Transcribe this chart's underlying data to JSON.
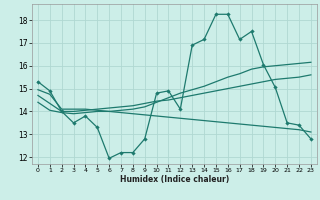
{
  "xlabel": "Humidex (Indice chaleur)",
  "bg_color": "#cceee8",
  "grid_color": "#b0d8d2",
  "line_color": "#1e7a6e",
  "xlim": [
    -0.5,
    23.5
  ],
  "ylim": [
    11.7,
    18.7
  ],
  "yticks": [
    12,
    13,
    14,
    15,
    16,
    17,
    18
  ],
  "xticks": [
    0,
    1,
    2,
    3,
    4,
    5,
    6,
    7,
    8,
    9,
    10,
    11,
    12,
    13,
    14,
    15,
    16,
    17,
    18,
    19,
    20,
    21,
    22,
    23
  ],
  "line1_x": [
    0,
    1,
    2,
    3,
    4,
    5,
    6,
    7,
    8,
    9,
    10,
    11,
    12,
    13,
    14,
    15,
    16,
    17,
    18,
    19,
    20,
    21,
    22,
    23
  ],
  "line1_y": [
    15.3,
    14.9,
    14.0,
    13.5,
    13.8,
    13.3,
    11.95,
    12.2,
    12.2,
    12.8,
    14.8,
    14.9,
    14.1,
    16.9,
    17.15,
    18.25,
    18.25,
    17.15,
    17.5,
    16.05,
    15.05,
    13.5,
    13.4,
    12.8
  ],
  "line2_x": [
    0,
    1,
    2,
    3,
    4,
    5,
    6,
    7,
    8,
    9,
    10,
    11,
    12,
    13,
    14,
    15,
    16,
    17,
    18,
    19,
    20,
    21,
    22,
    23
  ],
  "line2_y": [
    14.95,
    14.75,
    14.1,
    14.1,
    14.1,
    14.05,
    14.0,
    13.95,
    13.9,
    13.85,
    13.8,
    13.75,
    13.7,
    13.65,
    13.6,
    13.55,
    13.5,
    13.45,
    13.4,
    13.35,
    13.3,
    13.25,
    13.2,
    13.1
  ],
  "line3_x": [
    0,
    1,
    2,
    3,
    4,
    5,
    6,
    7,
    8,
    9,
    10,
    11,
    12,
    13,
    14,
    15,
    16,
    17,
    18,
    19,
    20,
    21,
    22,
    23
  ],
  "line3_y": [
    14.7,
    14.35,
    14.0,
    14.0,
    14.05,
    14.1,
    14.15,
    14.2,
    14.25,
    14.35,
    14.45,
    14.5,
    14.6,
    14.7,
    14.8,
    14.9,
    15.0,
    15.1,
    15.2,
    15.3,
    15.4,
    15.45,
    15.5,
    15.6
  ],
  "line4_x": [
    0,
    1,
    2,
    3,
    4,
    5,
    6,
    7,
    8,
    9,
    10,
    11,
    12,
    13,
    14,
    15,
    16,
    17,
    18,
    19,
    20,
    21,
    22,
    23
  ],
  "line4_y": [
    14.4,
    14.05,
    13.95,
    13.9,
    13.95,
    14.0,
    14.0,
    14.05,
    14.1,
    14.2,
    14.4,
    14.6,
    14.8,
    14.95,
    15.1,
    15.3,
    15.5,
    15.65,
    15.85,
    15.95,
    16.0,
    16.05,
    16.1,
    16.15
  ]
}
